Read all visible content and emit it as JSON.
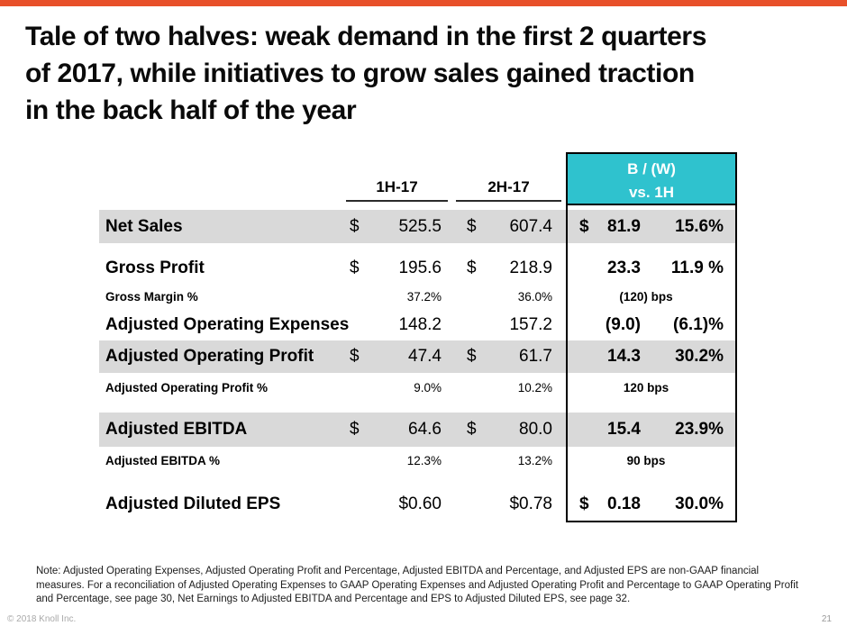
{
  "colors": {
    "accent_bar": "#E8502A",
    "header_teal": "#2FC2CE",
    "band_gray": "#D9D9D9"
  },
  "slide": {
    "title_lines": [
      "Tale of two halves: weak demand in the first 2 quarters",
      "of 2017, while initiatives to grow sales gained traction",
      "in the back half of the year"
    ],
    "note_lines": [
      "Note: Adjusted Operating Expenses, Adjusted Operating Profit and Percentage, Adjusted EBITDA and Percentage, and Adjusted EPS are non-GAAP financial",
      "measures.  For a reconciliation of Adjusted Operating Expenses to GAAP Operating Expenses and Adjusted Operating Profit and Percentage to GAAP Operating Profit",
      "and Percentage, see page 30, Net Earnings to Adjusted EBITDA and Percentage and EPS to Adjusted Diluted EPS, see page 32."
    ],
    "footer": {
      "copyright": "© 2018 Knoll Inc.",
      "page_number": "21"
    }
  },
  "table": {
    "col_headers": [
      "1H-17",
      "2H-17"
    ],
    "bw_header": {
      "line1": "B / (W)",
      "line2": "vs. 1H"
    },
    "rows": [
      {
        "label": "Net Sales",
        "size": "main",
        "band": true,
        "d1": "$",
        "v1": "525.5",
        "d2": "$",
        "v2": "607.4",
        "bwd": "$",
        "bwv": "81.9",
        "bwp": "15.6%",
        "bw_center": ""
      },
      {
        "label": "Gross Profit",
        "size": "main",
        "band": false,
        "d1": "$",
        "v1": "195.6",
        "d2": "$",
        "v2": "218.9",
        "bwd": "",
        "bwv": "23.3",
        "bwp": "11.9 %",
        "bw_center": ""
      },
      {
        "label": "Gross Margin %",
        "size": "sub",
        "band": false,
        "d1": "",
        "v1": "37.2%",
        "d2": "",
        "v2": "36.0%",
        "bwd": "",
        "bwv": "",
        "bwp": "",
        "bw_center": "(120) bps"
      },
      {
        "label": "Adjusted Operating Expenses",
        "size": "main",
        "band": false,
        "d1": "",
        "v1": "148.2",
        "d2": "",
        "v2": "157.2",
        "bwd": "",
        "bwv": "(9.0)",
        "bwp": "(6.1)%",
        "bw_center": ""
      },
      {
        "label": "Adjusted Operating Profit",
        "size": "main",
        "band": true,
        "d1": "$",
        "v1": "47.4",
        "d2": "$",
        "v2": "61.7",
        "bwd": "",
        "bwv": "14.3",
        "bwp": "30.2%",
        "bw_center": ""
      },
      {
        "label": "Adjusted Operating Profit %",
        "size": "sub",
        "band": false,
        "d1": "",
        "v1": "9.0%",
        "d2": "",
        "v2": "10.2%",
        "bwd": "",
        "bwv": "",
        "bwp": "",
        "bw_center": "120 bps"
      },
      {
        "label": "Adjusted EBITDA",
        "size": "main",
        "band": true,
        "d1": "$",
        "v1": "64.6",
        "d2": "$",
        "v2": "80.0",
        "bwd": "",
        "bwv": "15.4",
        "bwp": "23.9%",
        "bw_center": ""
      },
      {
        "label": "Adjusted EBITDA %",
        "size": "sub",
        "band": false,
        "d1": "",
        "v1": "12.3%",
        "d2": "",
        "v2": "13.2%",
        "bwd": "",
        "bwv": "",
        "bwp": "",
        "bw_center": "90 bps"
      },
      {
        "label": "Adjusted Diluted EPS",
        "size": "main",
        "band": false,
        "d1": "",
        "v1": "$0.60",
        "d2": "",
        "v2": "$0.78",
        "bwd": "$",
        "bwv": "0.18",
        "bwp": "30.0%",
        "bw_center": ""
      }
    ]
  }
}
